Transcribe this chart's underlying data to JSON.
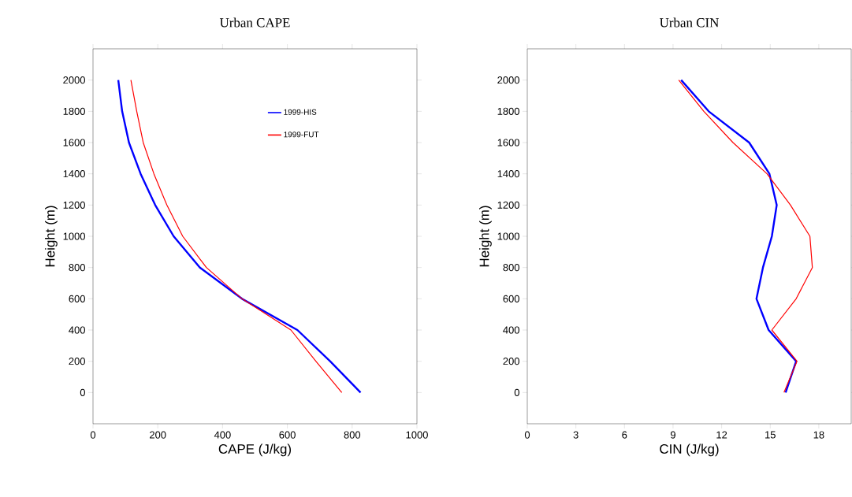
{
  "chart_data": [
    {
      "type": "line",
      "title": "Urban CAPE",
      "xlabel": "CAPE (J/kg)",
      "ylabel": "Height (m)",
      "xlim": [
        0,
        1000
      ],
      "xticks": [
        0,
        200,
        400,
        600,
        800,
        1000
      ],
      "ylim": [
        -200,
        2200
      ],
      "yticks": [
        0,
        200,
        400,
        600,
        800,
        1000,
        1200,
        1400,
        1600,
        1800,
        2000
      ],
      "legend": "top",
      "line_style": "solid",
      "series": [
        {
          "name": "1999-HIS",
          "color": "#0000ff",
          "x": [
            826,
            732,
            631,
            460,
            330,
            249,
            192,
            147,
            111,
            90,
            78
          ],
          "values": [
            0,
            200,
            400,
            600,
            800,
            1000,
            1200,
            1400,
            1600,
            1800,
            2000
          ]
        },
        {
          "name": "1999-FUT",
          "color": "#ff0000",
          "x": [
            768,
            688,
            611,
            460,
            350,
            277,
            228,
            188,
            155,
            135,
            117
          ],
          "values": [
            0,
            200,
            400,
            600,
            800,
            1000,
            1200,
            1400,
            1600,
            1800,
            2000
          ]
        }
      ]
    },
    {
      "type": "line",
      "title": "Urban CIN",
      "xlabel": "CIN (J/kg)",
      "ylabel": "Height (m)",
      "xlim": [
        0,
        20
      ],
      "xticks": [
        0,
        3,
        6,
        9,
        12,
        15,
        18
      ],
      "ylim": [
        -200,
        2200
      ],
      "yticks": [
        0,
        200,
        400,
        600,
        800,
        1000,
        1200,
        1400,
        1600,
        1800,
        2000
      ],
      "line_style": "solid",
      "series": [
        {
          "color": "#0000ff",
          "x": [
            15.95,
            16.6,
            14.9,
            14.15,
            14.55,
            15.1,
            15.4,
            14.95,
            13.7,
            11.2,
            9.5
          ],
          "values": [
            0,
            200,
            400,
            600,
            800,
            1000,
            1200,
            1400,
            1600,
            1800,
            2000
          ]
        },
        {
          "color": "#ff0000",
          "x": [
            15.85,
            16.65,
            15.1,
            16.6,
            17.6,
            17.45,
            16.25,
            14.8,
            12.7,
            10.9,
            9.35
          ],
          "values": [
            0,
            200,
            400,
            600,
            800,
            1000,
            1200,
            1400,
            1600,
            1800,
            2000
          ]
        }
      ]
    }
  ]
}
